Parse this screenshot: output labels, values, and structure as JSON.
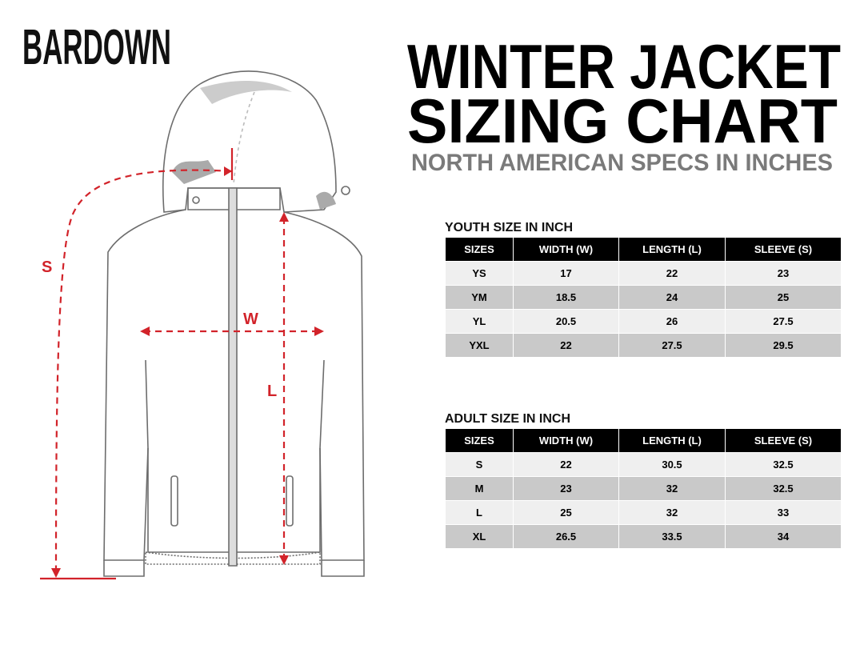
{
  "brand": "BARDOWN",
  "header": {
    "title_line1": "WINTER JACKET",
    "title_line2": "SIZING CHART",
    "subtitle": "NORTH AMERICAN SPECS IN INCHES"
  },
  "diagram": {
    "sleeve_label": "S",
    "width_label": "W",
    "length_label": "L"
  },
  "tables": [
    {
      "heading": "YOUTH SIZE IN INCH",
      "columns": [
        "SIZES",
        "WIDTH (W)",
        "LENGTH (L)",
        "SLEEVE (S)"
      ],
      "rows": [
        [
          "YS",
          "17",
          "22",
          "23"
        ],
        [
          "YM",
          "18.5",
          "24",
          "25"
        ],
        [
          "YL",
          "20.5",
          "26",
          "27.5"
        ],
        [
          "YXL",
          "22",
          "27.5",
          "29.5"
        ]
      ]
    },
    {
      "heading": "ADULT SIZE IN INCH",
      "columns": [
        "SIZES",
        "WIDTH (W)",
        "LENGTH (L)",
        "SLEEVE (S)"
      ],
      "rows": [
        [
          "S",
          "22",
          "30.5",
          "32.5"
        ],
        [
          "M",
          "23",
          "32",
          "32.5"
        ],
        [
          "L",
          "25",
          "32",
          "33"
        ],
        [
          "XL",
          "26.5",
          "33.5",
          "34"
        ]
      ]
    }
  ]
}
